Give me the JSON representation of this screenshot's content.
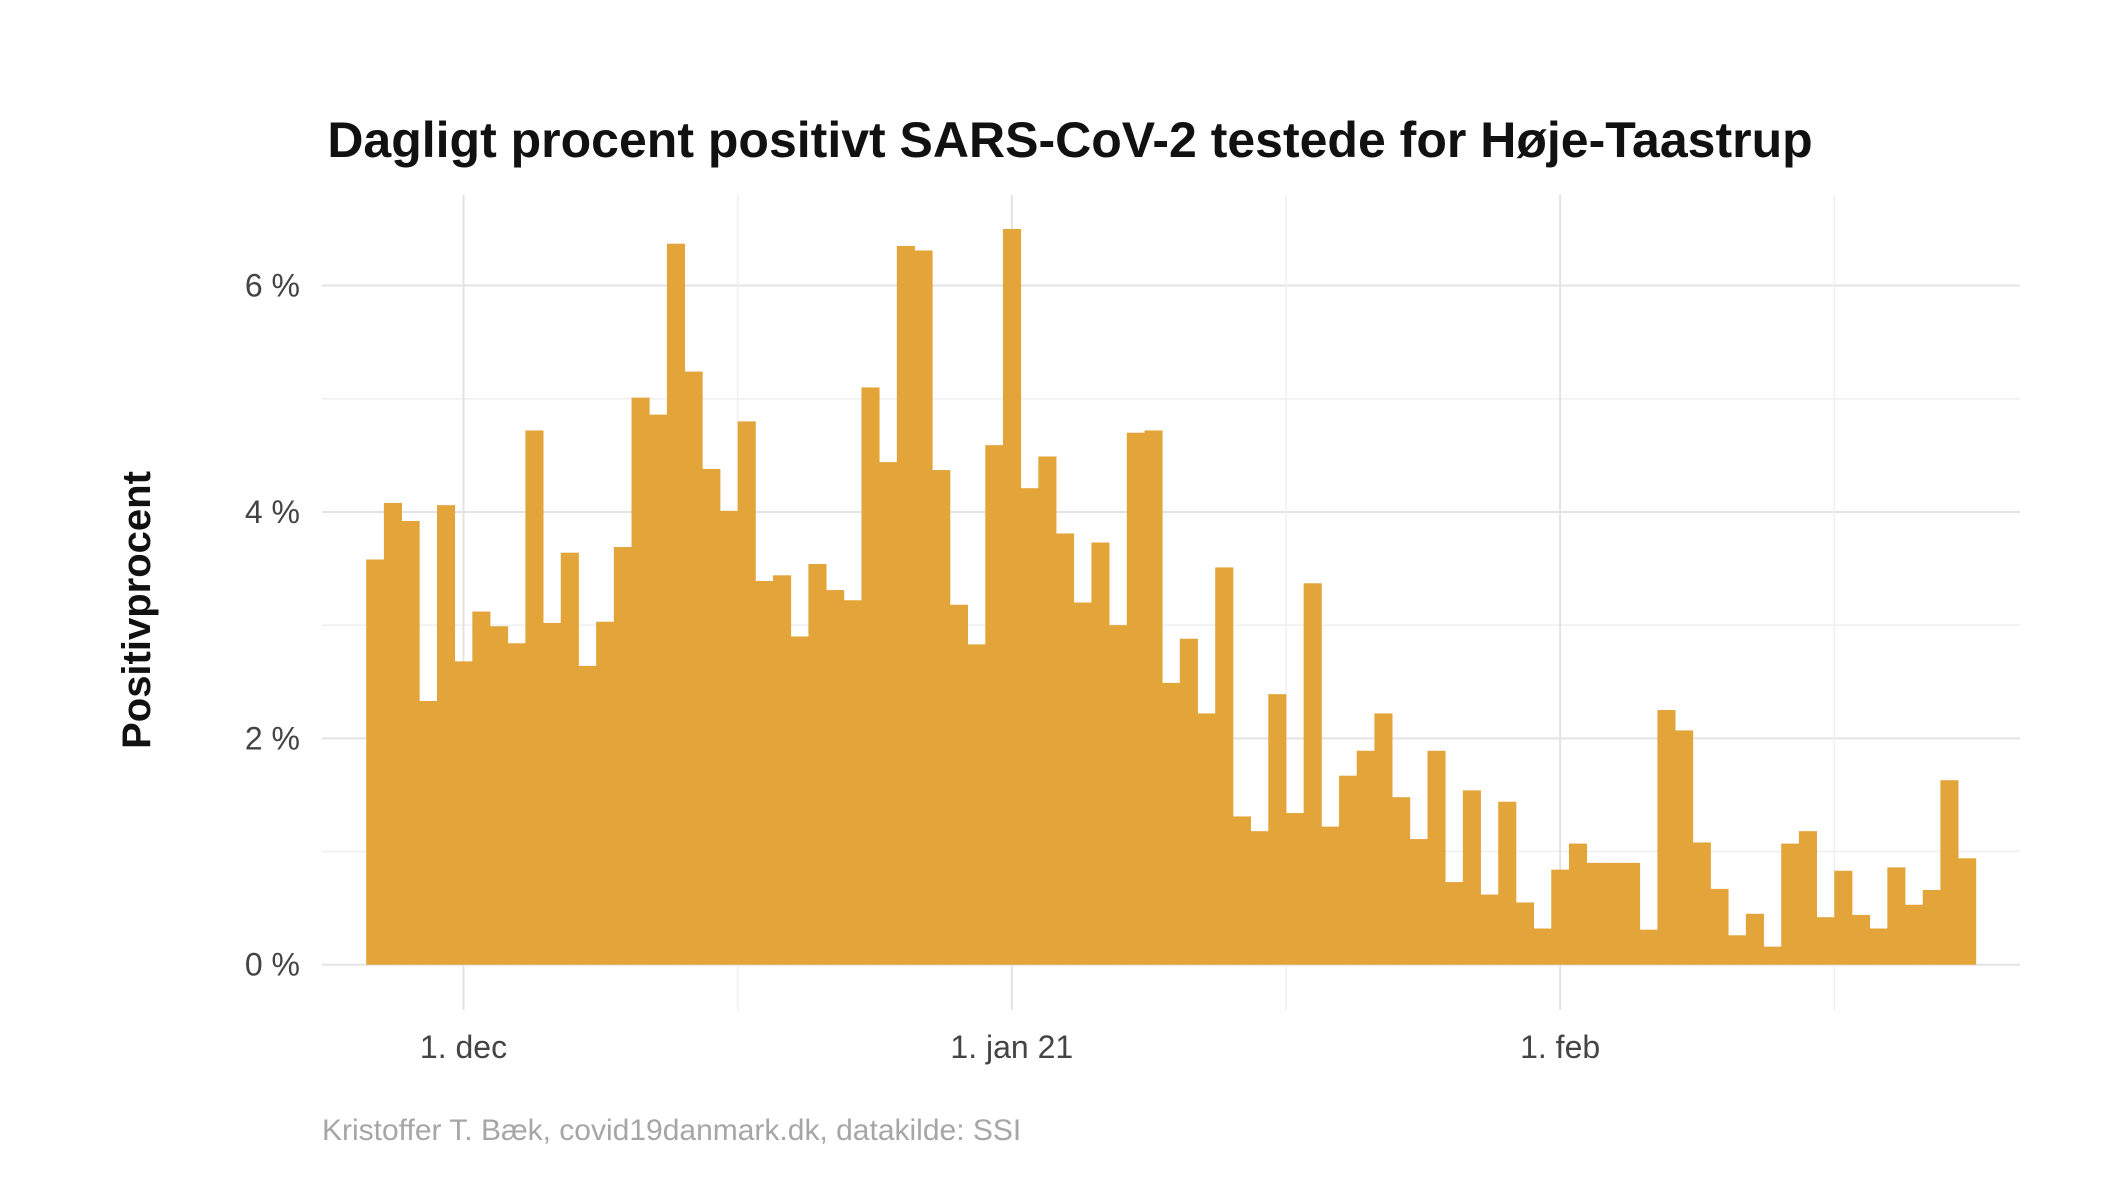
{
  "chart_data": {
    "type": "bar",
    "title": "Dagligt procent positivt SARS-CoV-2 testede for Høje-Taastrup",
    "xlabel": "",
    "ylabel": "Positivprocent",
    "caption": "Kristoffer T. Bæk, covid19danmark.dk, datakilde: SSI",
    "x_start": "2020-11-23",
    "x_end": "2021-02-27",
    "x_ticks": [
      {
        "date": "2020-12-01",
        "label": "1. dec"
      },
      {
        "date": "2021-01-01",
        "label": "1. jan 21"
      },
      {
        "date": "2021-02-01",
        "label": "1. feb"
      }
    ],
    "y_ticks": [
      {
        "value": 0,
        "label": "0 %"
      },
      {
        "value": 2,
        "label": "2 %"
      },
      {
        "value": 4,
        "label": "4 %"
      },
      {
        "value": 6,
        "label": "6 %"
      }
    ],
    "ylim": [
      -0.4,
      6.8
    ],
    "grid": true,
    "legend": "none",
    "bar_color": "#E3A43A",
    "values": [
      3.58,
      4.08,
      3.92,
      2.33,
      4.06,
      2.68,
      3.12,
      2.99,
      2.84,
      4.72,
      3.02,
      3.64,
      2.64,
      3.03,
      3.69,
      5.01,
      4.86,
      6.37,
      5.24,
      4.38,
      4.01,
      4.8,
      3.39,
      3.44,
      2.9,
      3.54,
      3.31,
      3.22,
      5.1,
      4.44,
      6.35,
      6.31,
      4.37,
      3.18,
      2.83,
      4.59,
      6.5,
      4.21,
      4.49,
      3.81,
      3.2,
      3.73,
      3.0,
      4.7,
      4.72,
      2.49,
      2.88,
      2.22,
      3.51,
      1.31,
      1.18,
      2.39,
      1.34,
      3.37,
      1.22,
      1.67,
      1.89,
      2.22,
      1.48,
      1.11,
      1.89,
      0.73,
      1.54,
      0.62,
      1.44,
      0.55,
      0.32,
      0.84,
      1.07,
      0.9,
      0.9,
      0.9,
      0.31,
      2.25,
      2.07,
      1.08,
      0.67,
      0.26,
      0.45,
      0.16,
      1.07,
      1.18,
      0.42,
      0.83,
      0.44,
      0.32,
      0.86,
      0.53,
      0.66,
      1.63,
      0.94
    ]
  }
}
